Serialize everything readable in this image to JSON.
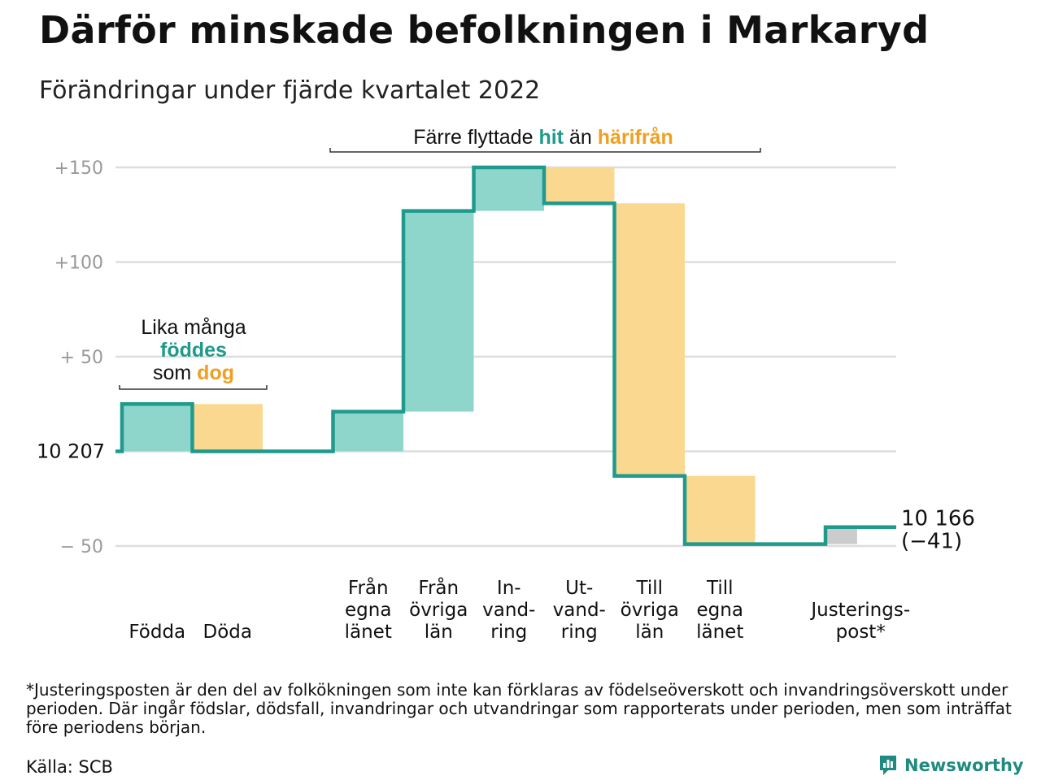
{
  "title": "Därför minskade befolkningen i Markaryd",
  "subtitle": "Förändringar under fjärde kvartalet 2022",
  "footnote": "*Justeringsposten är den del av folkökningen som inte kan förklaras av födelseöverskott och invandringsöverskott under perioden. Där ingår födslar, dödsfall, invandringar och utvandringar som rapporterats under perioden, men som inträffat före periodens början.",
  "source": "Källa: SCB",
  "brand": {
    "name": "Newsworthy",
    "icon": "newsworthy-logo-icon"
  },
  "colors": {
    "line": "#1f9a8c",
    "increase": "#8ed6cc",
    "decrease": "#fbd88f",
    "adjustment": "#cccccc",
    "grid": "#dddddd",
    "tick_text": "#999999",
    "accent_teal": "#1f9a8c",
    "accent_orange": "#f0a020"
  },
  "chart_data": {
    "type": "waterfall",
    "start_value": 10207,
    "start_label": "10 207",
    "end_label_value": "10 166",
    "end_label_change": "(−41)",
    "ylim": [
      -50,
      150
    ],
    "yticks": [
      {
        "value": 150,
        "label": "+150"
      },
      {
        "value": 100,
        "label": "+100"
      },
      {
        "value": 50,
        "label": "+ 50"
      },
      {
        "value": 0,
        "label": ""
      },
      {
        "value": -50,
        "label": "− 50"
      }
    ],
    "grid": true,
    "steps": [
      {
        "category": "Födda",
        "label_lines": [
          "Födda"
        ],
        "value": 25,
        "kind": "increase"
      },
      {
        "category": "Döda",
        "label_lines": [
          "Döda"
        ],
        "value": -25,
        "kind": "decrease"
      },
      {
        "category": "",
        "label_lines": [],
        "value": 0,
        "kind": "gap"
      },
      {
        "category": "Från egna länet",
        "label_lines": [
          "Från",
          "egna",
          "länet"
        ],
        "value": 21,
        "kind": "increase"
      },
      {
        "category": "Från övriga län",
        "label_lines": [
          "Från",
          "övriga",
          "län"
        ],
        "value": 106,
        "kind": "increase"
      },
      {
        "category": "In-vand-ring",
        "label_lines": [
          "In-",
          "vand-",
          "ring"
        ],
        "value": 23,
        "kind": "increase"
      },
      {
        "category": "Ut-vand-ring",
        "label_lines": [
          "Ut-",
          "vand-",
          "ring"
        ],
        "value": -19,
        "kind": "decrease"
      },
      {
        "category": "Till övriga län",
        "label_lines": [
          "Till",
          "övriga",
          "län"
        ],
        "value": -144,
        "kind": "decrease"
      },
      {
        "category": "Till egna länet",
        "label_lines": [
          "Till",
          "egna",
          "länet"
        ],
        "value": -36,
        "kind": "decrease"
      },
      {
        "category": "",
        "label_lines": [],
        "value": 0,
        "kind": "gap"
      },
      {
        "category": "Justerings-post*",
        "label_lines": [
          "Justerings-",
          "post*"
        ],
        "value": 9,
        "kind": "adjustment"
      }
    ],
    "annotations": {
      "births_deaths": {
        "lines": [
          [
            {
              "text": "Lika många",
              "style": "plain"
            }
          ],
          [
            {
              "text": "föddes",
              "style": "teal"
            }
          ],
          [
            {
              "text": "som ",
              "style": "plain"
            },
            {
              "text": "dog",
              "style": "orange"
            }
          ]
        ]
      },
      "migration": {
        "parts": [
          {
            "text": "Färre flyttade ",
            "style": "plain"
          },
          {
            "text": "hit",
            "style": "teal"
          },
          {
            "text": " än ",
            "style": "plain"
          },
          {
            "text": "härifrån",
            "style": "orange"
          }
        ]
      }
    }
  }
}
